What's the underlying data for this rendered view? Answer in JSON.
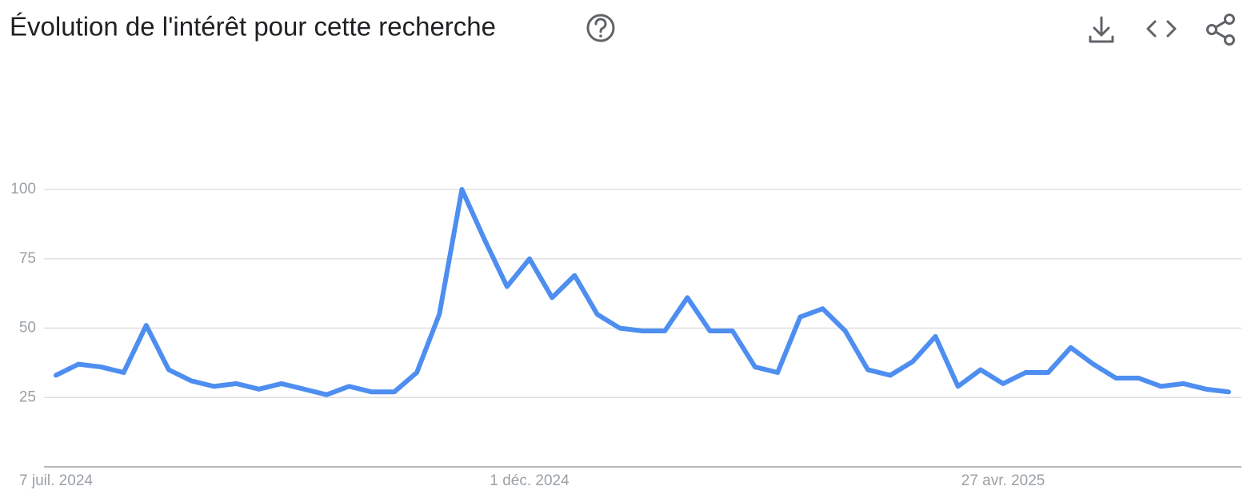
{
  "header": {
    "title": "Évolution de l'intérêt pour cette recherche"
  },
  "chart_data": {
    "type": "line",
    "categories": [
      "7 juil. 2024",
      null,
      null,
      null,
      null,
      null,
      null,
      null,
      null,
      null,
      null,
      null,
      null,
      null,
      null,
      null,
      null,
      null,
      null,
      null,
      null,
      "1 déc. 2024",
      null,
      null,
      null,
      null,
      null,
      null,
      null,
      null,
      null,
      null,
      null,
      null,
      null,
      null,
      null,
      null,
      null,
      null,
      null,
      null,
      "27 avr. 2025",
      null,
      null,
      null,
      null,
      null,
      null,
      null,
      null,
      null,
      null
    ],
    "series": [
      {
        "color": "#4e8ef0",
        "values": [
          33,
          37,
          36,
          34,
          51,
          35,
          31,
          29,
          30,
          28,
          30,
          28,
          26,
          29,
          27,
          27,
          34,
          55,
          100,
          82,
          65,
          75,
          61,
          69,
          55,
          50,
          49,
          49,
          61,
          49,
          49,
          36,
          34,
          54,
          57,
          49,
          35,
          33,
          38,
          47,
          29,
          35,
          30,
          34,
          34,
          43,
          37,
          32,
          32,
          29,
          30,
          28,
          27
        ]
      }
    ],
    "ylim": [
      0,
      100
    ],
    "yticks": [
      25,
      50,
      75,
      100
    ],
    "grid": true
  }
}
